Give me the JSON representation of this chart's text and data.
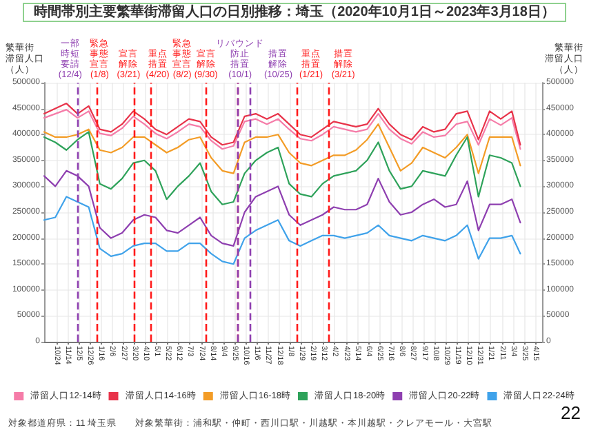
{
  "chart_data": {
    "type": "line",
    "title": "時間帯別主要繁華街滞留人口の日別推移：埼玉（2020年10月1日～2023年3月18日）",
    "ylabel": "繁華街滞留人口（人）",
    "y2label": "繁華街滞留人口（人）",
    "x": [
      "2020-10-01",
      "2020-10-22",
      "2020-11-12",
      "2020-12-03",
      "2020-12-24",
      "2021-01-14",
      "2021-02-04",
      "2021-02-25",
      "2021-03-18",
      "2021-04-08",
      "2021-04-29",
      "2021-05-20",
      "2021-06-10",
      "2021-07-01",
      "2021-07-22",
      "2021-08-12",
      "2021-09-02",
      "2021-09-23",
      "2021-10-14",
      "2021-11-04",
      "2021-11-25",
      "2021-12-16",
      "2022-01-06",
      "2022-01-27",
      "2022-02-17",
      "2022-03-10",
      "2022-03-31",
      "2022-04-21",
      "2022-05-12",
      "2022-06-02",
      "2022-06-23",
      "2022-07-14",
      "2022-08-04",
      "2022-08-25",
      "2022-09-15",
      "2022-10-06",
      "2022-10-27",
      "2022-11-17",
      "2022-12-08",
      "2022-12-29",
      "2023-01-19",
      "2023-02-09",
      "2023-03-02",
      "2023-03-18"
    ],
    "series": [
      {
        "name": "滞留人口12-14時",
        "color": "#f57ca8",
        "values": [
          432000,
          440000,
          448000,
          432000,
          445000,
          402000,
          398000,
          412000,
          435000,
          420000,
          402000,
          392000,
          405000,
          420000,
          415000,
          388000,
          372000,
          378000,
          425000,
          430000,
          420000,
          430000,
          410000,
          392000,
          388000,
          400000,
          415000,
          410000,
          405000,
          410000,
          440000,
          410000,
          392000,
          382000,
          405000,
          395000,
          398000,
          420000,
          425000,
          380000,
          430000,
          418000,
          432000,
          372000
        ]
      },
      {
        "name": "滞留人口14-16時",
        "color": "#e8334a",
        "values": [
          440000,
          450000,
          460000,
          440000,
          455000,
          410000,
          405000,
          420000,
          445000,
          430000,
          410000,
          400000,
          415000,
          430000,
          425000,
          395000,
          380000,
          385000,
          435000,
          440000,
          430000,
          440000,
          420000,
          400000,
          395000,
          410000,
          425000,
          420000,
          415000,
          420000,
          450000,
          420000,
          400000,
          390000,
          415000,
          405000,
          410000,
          440000,
          445000,
          390000,
          445000,
          430000,
          445000,
          380000
        ]
      },
      {
        "name": "滞留人口16-18時",
        "color": "#f39c26",
        "values": [
          405000,
          395000,
          395000,
          400000,
          410000,
          370000,
          365000,
          375000,
          395000,
          395000,
          380000,
          365000,
          375000,
          390000,
          395000,
          355000,
          330000,
          325000,
          385000,
          395000,
          395000,
          400000,
          365000,
          345000,
          340000,
          350000,
          360000,
          360000,
          370000,
          390000,
          420000,
          375000,
          330000,
          345000,
          375000,
          365000,
          355000,
          375000,
          400000,
          325000,
          395000,
          395000,
          395000,
          340000
        ]
      },
      {
        "name": "滞留人口18-20時",
        "color": "#2ea25a",
        "values": [
          395000,
          385000,
          370000,
          390000,
          405000,
          305000,
          295000,
          315000,
          345000,
          350000,
          330000,
          275000,
          300000,
          320000,
          345000,
          290000,
          265000,
          270000,
          325000,
          350000,
          365000,
          375000,
          305000,
          285000,
          280000,
          305000,
          320000,
          325000,
          330000,
          350000,
          385000,
          330000,
          295000,
          300000,
          330000,
          325000,
          320000,
          360000,
          395000,
          280000,
          360000,
          355000,
          345000,
          300000
        ]
      },
      {
        "name": "滞留人口20-22時",
        "color": "#8e3fb0",
        "values": [
          320000,
          300000,
          330000,
          320000,
          300000,
          220000,
          200000,
          210000,
          235000,
          245000,
          240000,
          215000,
          210000,
          225000,
          240000,
          205000,
          190000,
          185000,
          250000,
          280000,
          290000,
          300000,
          245000,
          225000,
          235000,
          245000,
          260000,
          255000,
          255000,
          265000,
          315000,
          270000,
          245000,
          250000,
          265000,
          275000,
          260000,
          265000,
          310000,
          215000,
          265000,
          265000,
          275000,
          230000
        ]
      },
      {
        "name": "滞留人口22-24時",
        "color": "#3fa2ea",
        "values": [
          235000,
          240000,
          280000,
          270000,
          260000,
          180000,
          165000,
          170000,
          185000,
          190000,
          190000,
          175000,
          175000,
          190000,
          190000,
          170000,
          155000,
          150000,
          200000,
          215000,
          225000,
          235000,
          195000,
          185000,
          195000,
          205000,
          205000,
          200000,
          205000,
          210000,
          225000,
          205000,
          200000,
          195000,
          205000,
          200000,
          195000,
          205000,
          225000,
          160000,
          200000,
          200000,
          205000,
          170000
        ]
      }
    ],
    "xlim": [
      "2020-10-01",
      "2023-04-28"
    ],
    "xticks": [
      {
        "value": "2020-10-24",
        "label": "10/24"
      },
      {
        "value": "2020-11-14",
        "label": "11/14"
      },
      {
        "value": "2020-12-05",
        "label": "12/5"
      },
      {
        "value": "2020-12-26",
        "label": "12/26"
      },
      {
        "value": "2021-01-16",
        "label": "1/16"
      },
      {
        "value": "2021-02-06",
        "label": "2/6"
      },
      {
        "value": "2021-02-27",
        "label": "2/27"
      },
      {
        "value": "2021-03-20",
        "label": "3/20"
      },
      {
        "value": "2021-04-10",
        "label": "4/10"
      },
      {
        "value": "2021-05-01",
        "label": "5/1"
      },
      {
        "value": "2021-05-22",
        "label": "5/22"
      },
      {
        "value": "2021-06-12",
        "label": "6/12"
      },
      {
        "value": "2021-07-03",
        "label": "7/3"
      },
      {
        "value": "2021-07-24",
        "label": "7/24"
      },
      {
        "value": "2021-08-14",
        "label": "8/14"
      },
      {
        "value": "2021-09-04",
        "label": "9/4"
      },
      {
        "value": "2021-09-25",
        "label": "9/25"
      },
      {
        "value": "2021-10-16",
        "label": "10/16"
      },
      {
        "value": "2021-11-06",
        "label": "11/6"
      },
      {
        "value": "2021-11-27",
        "label": "11/27"
      },
      {
        "value": "2021-12-18",
        "label": "12/18"
      },
      {
        "value": "2022-01-08",
        "label": "1/8"
      },
      {
        "value": "2022-01-29",
        "label": "1/29"
      },
      {
        "value": "2022-02-19",
        "label": "2/19"
      },
      {
        "value": "2022-03-12",
        "label": "3/12"
      },
      {
        "value": "2022-04-02",
        "label": "4/2"
      },
      {
        "value": "2022-04-23",
        "label": "4/23"
      },
      {
        "value": "2022-05-14",
        "label": "5/14"
      },
      {
        "value": "2022-06-04",
        "label": "6/4"
      },
      {
        "value": "2022-06-25",
        "label": "6/25"
      },
      {
        "value": "2022-07-16",
        "label": "7/16"
      },
      {
        "value": "2022-08-06",
        "label": "8/6"
      },
      {
        "value": "2022-08-27",
        "label": "8/27"
      },
      {
        "value": "2022-09-17",
        "label": "9/17"
      },
      {
        "value": "2022-10-08",
        "label": "10/8"
      },
      {
        "value": "2022-10-29",
        "label": "10/29"
      },
      {
        "value": "2022-11-19",
        "label": "11/19"
      },
      {
        "value": "2022-12-10",
        "label": "12/10"
      },
      {
        "value": "2022-12-31",
        "label": "12/31"
      },
      {
        "value": "2023-01-21",
        "label": "1/21"
      },
      {
        "value": "2023-02-11",
        "label": "2/11"
      },
      {
        "value": "2023-03-04",
        "label": "3/4"
      },
      {
        "value": "2023-03-25",
        "label": "3/25"
      },
      {
        "value": "2023-04-15",
        "label": "4/15"
      }
    ],
    "ylim": [
      0,
      500000
    ],
    "yticks": [
      0,
      50000,
      100000,
      150000,
      200000,
      250000,
      300000,
      350000,
      400000,
      450000,
      500000
    ],
    "y2lim": [
      0,
      500000
    ],
    "y2ticks": [
      0,
      50000,
      100000,
      150000,
      200000,
      250000,
      300000,
      350000,
      400000,
      450000,
      500000
    ],
    "ref_lines": [
      {
        "axis": "x",
        "value": "2020-12-04",
        "label": "一部時短要請(12/4)",
        "color": "#8e3fb0",
        "line_style": "dashed"
      },
      {
        "axis": "x",
        "value": "2021-01-08",
        "label": "緊急事態宣言(1/8)",
        "color": "#ff1a1a",
        "line_style": "dashed"
      },
      {
        "axis": "x",
        "value": "2021-03-21",
        "label": "宣言解除(3/21)",
        "color": "#ff1a1a",
        "line_style": "dashed"
      },
      {
        "axis": "x",
        "value": "2021-04-20",
        "label": "重点措置(4/20)",
        "color": "#ff1a1a",
        "line_style": "dashed"
      },
      {
        "axis": "x",
        "value": "2021-08-02",
        "label": "緊急事態宣言(8/2)",
        "color": "#ff1a1a",
        "line_style": "dashed"
      },
      {
        "axis": "x",
        "value": "2021-09-30",
        "label": "宣言解除(9/30)",
        "color": "#ff1a1a",
        "line_style": "dashed"
      },
      {
        "axis": "x",
        "value": "2021-10-01",
        "label": "リバウンド防止措置(10/1)",
        "color": "#8e3fb0",
        "line_style": "dashed"
      },
      {
        "axis": "x",
        "value": "2021-10-25",
        "label": "措置解除(10/25)",
        "color": "#8e3fb0",
        "line_style": "dashed"
      },
      {
        "axis": "x",
        "value": "2022-01-21",
        "label": "重点措置(1/21)",
        "color": "#ff1a1a",
        "line_style": "dashed"
      },
      {
        "axis": "x",
        "value": "2022-03-21",
        "label": "措置解除(3/21)",
        "color": "#ff1a1a",
        "line_style": "dashed"
      }
    ],
    "annotations": [
      "対象都道府県：11 埼玉県",
      "対象繁華街：浦和駅・仲町・西川口駅・川越駅・本川越駅・クレアモール・大宮駅",
      "22"
    ],
    "grid": true,
    "legend": "bottom",
    "marker": "none",
    "line_style": "solid"
  }
}
